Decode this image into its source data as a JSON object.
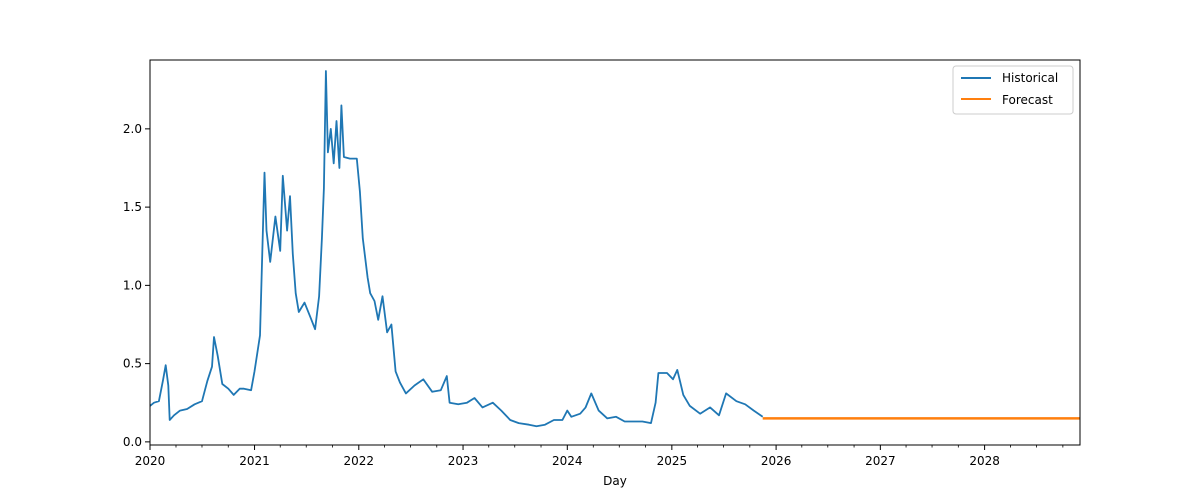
{
  "chart_data": {
    "type": "line",
    "title": "",
    "xlabel": "Day",
    "ylabel": "",
    "x_axis_type": "date",
    "xlim": [
      "2020-01-01",
      "2028-11-30"
    ],
    "ylim": [
      -0.02,
      2.44
    ],
    "x_ticks": [
      "2020-01-01",
      "2021-01-01",
      "2022-01-01",
      "2023-01-01",
      "2024-01-01",
      "2025-01-01",
      "2026-01-01",
      "2027-01-01",
      "2028-01-01"
    ],
    "x_tick_labels": [
      "2020",
      "2021",
      "2022",
      "2023",
      "2024",
      "2025",
      "2026",
      "2027",
      "2028"
    ],
    "y_ticks": [
      0.0,
      0.5,
      1.0,
      1.5,
      2.0
    ],
    "y_tick_labels": [
      "0.0",
      "0.5",
      "1.0",
      "1.5",
      "2.0"
    ],
    "grid": false,
    "legend_position": "top-right",
    "series": [
      {
        "name": "Historical",
        "color": "#1f77b4",
        "points": [
          [
            "2020-01-01",
            0.23
          ],
          [
            "2020-01-15",
            0.25
          ],
          [
            "2020-02-01",
            0.26
          ],
          [
            "2020-02-15",
            0.39
          ],
          [
            "2020-02-25",
            0.49
          ],
          [
            "2020-03-05",
            0.36
          ],
          [
            "2020-03-10",
            0.14
          ],
          [
            "2020-03-25",
            0.17
          ],
          [
            "2020-04-15",
            0.2
          ],
          [
            "2020-05-10",
            0.21
          ],
          [
            "2020-06-05",
            0.24
          ],
          [
            "2020-07-01",
            0.26
          ],
          [
            "2020-07-20",
            0.39
          ],
          [
            "2020-08-05",
            0.48
          ],
          [
            "2020-08-12",
            0.67
          ],
          [
            "2020-08-25",
            0.55
          ],
          [
            "2020-09-10",
            0.37
          ],
          [
            "2020-10-01",
            0.34
          ],
          [
            "2020-10-20",
            0.3
          ],
          [
            "2020-11-10",
            0.34
          ],
          [
            "2020-11-25",
            0.34
          ],
          [
            "2020-12-20",
            0.33
          ],
          [
            "2021-01-01",
            0.45
          ],
          [
            "2021-01-20",
            0.68
          ],
          [
            "2021-02-05",
            1.72
          ],
          [
            "2021-02-12",
            1.35
          ],
          [
            "2021-02-25",
            1.15
          ],
          [
            "2021-03-15",
            1.44
          ],
          [
            "2021-04-01",
            1.22
          ],
          [
            "2021-04-10",
            1.7
          ],
          [
            "2021-04-25",
            1.35
          ],
          [
            "2021-05-05",
            1.57
          ],
          [
            "2021-05-15",
            1.2
          ],
          [
            "2021-05-25",
            0.95
          ],
          [
            "2021-06-05",
            0.83
          ],
          [
            "2021-06-25",
            0.89
          ],
          [
            "2021-07-15",
            0.8
          ],
          [
            "2021-08-01",
            0.72
          ],
          [
            "2021-08-15",
            0.93
          ],
          [
            "2021-08-25",
            1.3
          ],
          [
            "2021-09-01",
            1.62
          ],
          [
            "2021-09-08",
            2.37
          ],
          [
            "2021-09-15",
            1.85
          ],
          [
            "2021-09-25",
            2.0
          ],
          [
            "2021-10-05",
            1.78
          ],
          [
            "2021-10-15",
            2.05
          ],
          [
            "2021-10-25",
            1.75
          ],
          [
            "2021-11-01",
            2.15
          ],
          [
            "2021-11-10",
            1.82
          ],
          [
            "2021-12-01",
            1.81
          ],
          [
            "2021-12-25",
            1.81
          ],
          [
            "2022-01-05",
            1.6
          ],
          [
            "2022-01-15",
            1.3
          ],
          [
            "2022-02-01",
            1.05
          ],
          [
            "2022-02-10",
            0.95
          ],
          [
            "2022-02-25",
            0.9
          ],
          [
            "2022-03-10",
            0.78
          ],
          [
            "2022-03-25",
            0.93
          ],
          [
            "2022-04-10",
            0.7
          ],
          [
            "2022-04-25",
            0.75
          ],
          [
            "2022-05-10",
            0.45
          ],
          [
            "2022-05-25",
            0.38
          ],
          [
            "2022-06-15",
            0.31
          ],
          [
            "2022-07-15",
            0.36
          ],
          [
            "2022-08-15",
            0.4
          ],
          [
            "2022-09-15",
            0.32
          ],
          [
            "2022-10-15",
            0.33
          ],
          [
            "2022-11-05",
            0.42
          ],
          [
            "2022-11-15",
            0.25
          ],
          [
            "2022-12-15",
            0.24
          ],
          [
            "2023-01-15",
            0.25
          ],
          [
            "2023-02-10",
            0.28
          ],
          [
            "2023-03-10",
            0.22
          ],
          [
            "2023-04-15",
            0.25
          ],
          [
            "2023-05-15",
            0.2
          ],
          [
            "2023-06-15",
            0.14
          ],
          [
            "2023-07-15",
            0.12
          ],
          [
            "2023-08-20",
            0.11
          ],
          [
            "2023-09-15",
            0.1
          ],
          [
            "2023-10-15",
            0.11
          ],
          [
            "2023-11-15",
            0.14
          ],
          [
            "2023-12-15",
            0.14
          ],
          [
            "2024-01-01",
            0.2
          ],
          [
            "2024-01-15",
            0.16
          ],
          [
            "2024-02-15",
            0.18
          ],
          [
            "2024-03-05",
            0.22
          ],
          [
            "2024-03-25",
            0.31
          ],
          [
            "2024-04-20",
            0.2
          ],
          [
            "2024-05-20",
            0.15
          ],
          [
            "2024-06-20",
            0.16
          ],
          [
            "2024-07-20",
            0.13
          ],
          [
            "2024-08-20",
            0.13
          ],
          [
            "2024-09-20",
            0.13
          ],
          [
            "2024-10-20",
            0.12
          ],
          [
            "2024-11-05",
            0.25
          ],
          [
            "2024-11-15",
            0.44
          ],
          [
            "2024-12-15",
            0.44
          ],
          [
            "2025-01-05",
            0.4
          ],
          [
            "2025-01-20",
            0.46
          ],
          [
            "2025-02-10",
            0.3
          ],
          [
            "2025-03-05",
            0.23
          ],
          [
            "2025-04-10",
            0.18
          ],
          [
            "2025-05-15",
            0.22
          ],
          [
            "2025-06-15",
            0.17
          ],
          [
            "2025-07-10",
            0.31
          ],
          [
            "2025-08-15",
            0.26
          ],
          [
            "2025-09-15",
            0.24
          ],
          [
            "2025-10-15",
            0.2
          ],
          [
            "2025-11-15",
            0.16
          ]
        ]
      },
      {
        "name": "Forecast",
        "color": "#ff7f0e",
        "points": [
          [
            "2025-11-15",
            0.15
          ],
          [
            "2028-11-30",
            0.15
          ]
        ]
      }
    ]
  }
}
